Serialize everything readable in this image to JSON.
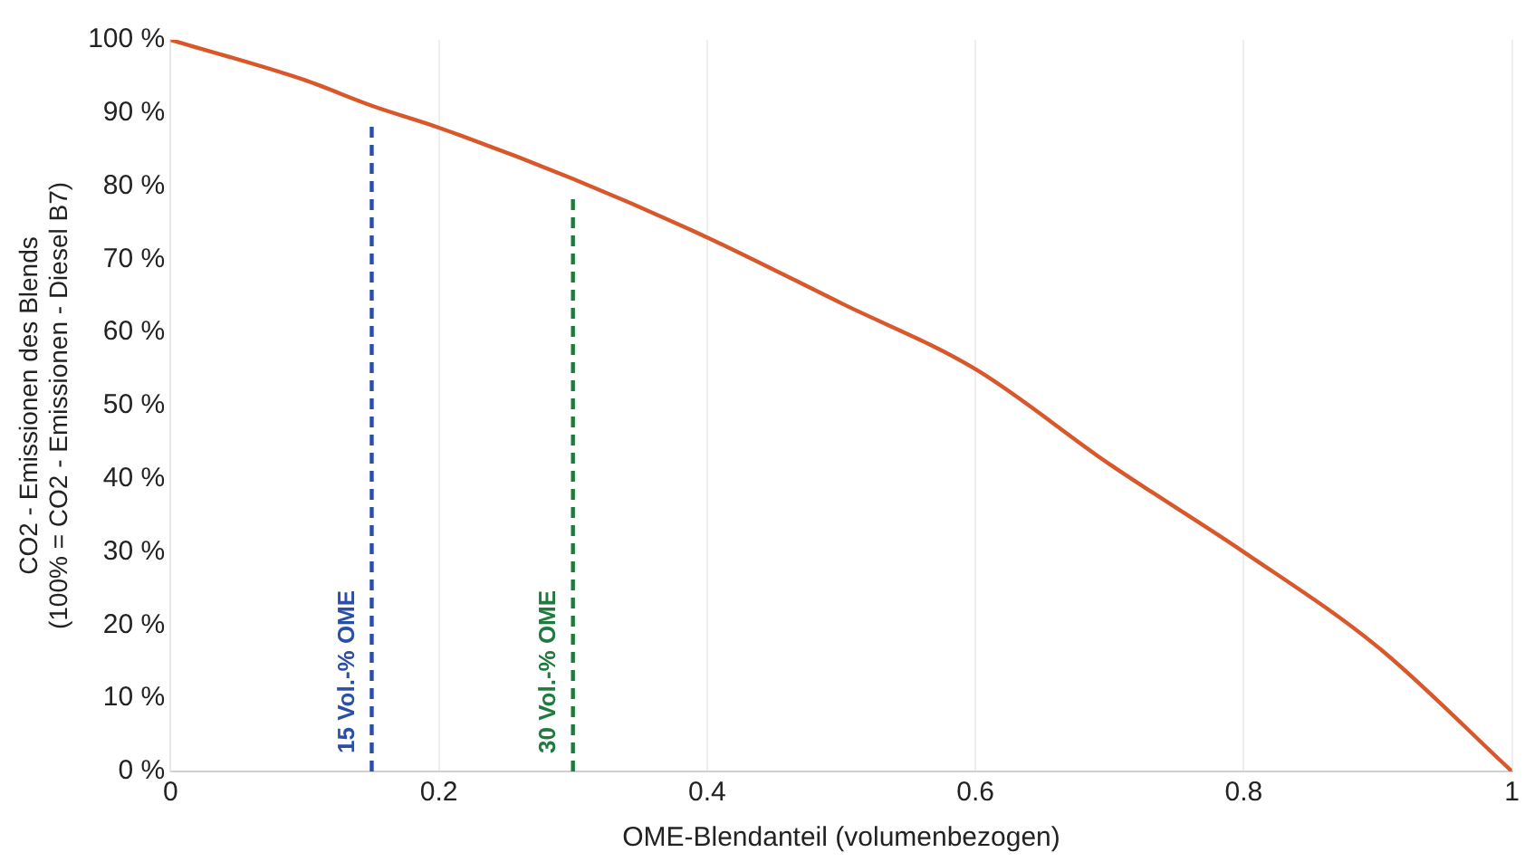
{
  "chart_data": {
    "type": "line",
    "xlabel": "OME-Blendanteil (volumenbezogen)",
    "ylabel": "CO2 - Emissionen des Blends\n(100% = CO2 - Emissionen - Diesel B7)",
    "series": [
      {
        "color": "#d9582b",
        "x": [
          0,
          0.1,
          0.15,
          0.2,
          0.3,
          0.4,
          0.5,
          0.6,
          0.7,
          0.8,
          0.9,
          1
        ],
        "values": [
          100,
          94.5,
          91,
          88,
          81,
          73,
          64,
          55,
          42,
          30,
          17,
          0
        ]
      }
    ],
    "xlim": [
      0,
      1
    ],
    "xticks": [
      0,
      0.2,
      0.4,
      0.6,
      0.8,
      1
    ],
    "ylim": [
      0,
      100
    ],
    "yticks": [
      {
        "value": 0,
        "label": "0 %"
      },
      {
        "value": 10,
        "label": "10 %"
      },
      {
        "value": 20,
        "label": "20 %"
      },
      {
        "value": 30,
        "label": "30 %"
      },
      {
        "value": 40,
        "label": "40 %"
      },
      {
        "value": 50,
        "label": "50 %"
      },
      {
        "value": 60,
        "label": "60 %"
      },
      {
        "value": 70,
        "label": "70 %"
      },
      {
        "value": 80,
        "label": "80 %"
      },
      {
        "value": 90,
        "label": "90 %"
      },
      {
        "value": 100,
        "label": "100 %"
      }
    ],
    "ref_lines": [
      {
        "axis": "x",
        "value": 0.15,
        "label": "15 Vol.-% OME",
        "color": "#2b4ea6",
        "line_style": "dashed"
      },
      {
        "axis": "x",
        "value": 0.3,
        "label": "30 Vol.-% OME",
        "color": "#1f7a3e",
        "line_style": "dashed"
      }
    ],
    "grid": "x",
    "marker": "none",
    "line_style": "solid",
    "legend": false
  }
}
